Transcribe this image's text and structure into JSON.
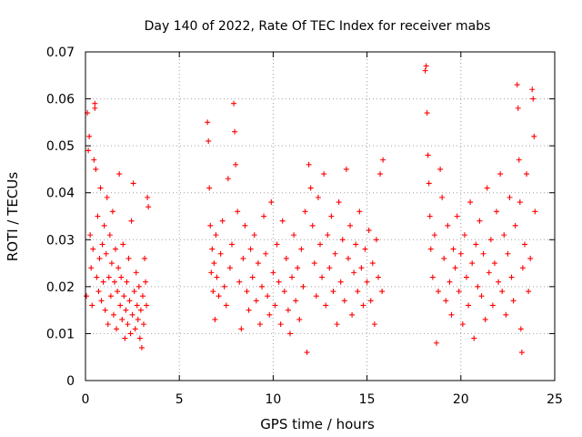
{
  "chart_data": {
    "type": "scatter",
    "title": "Day 140 of 2022, Rate Of TEC Index for receiver mabs",
    "xlabel": "GPS time / hours",
    "ylabel": "ROTI / TECUs",
    "xlim": [
      0,
      25
    ],
    "ylim": [
      0,
      0.07
    ],
    "x_ticks": [
      "0",
      "5",
      "10",
      "15",
      "20",
      "25"
    ],
    "y_ticks": [
      "0",
      "0.01",
      "0.02",
      "0.03",
      "0.04",
      "0.05",
      "0.06",
      "0.07"
    ],
    "grid": true,
    "legend": "none",
    "marker": "+",
    "color": "#ff0000",
    "series": [
      {
        "points": [
          [
            0.05,
            0.018
          ],
          [
            0.1,
            0.057
          ],
          [
            0.15,
            0.049
          ],
          [
            0.2,
            0.052
          ],
          [
            0.25,
            0.031
          ],
          [
            0.3,
            0.024
          ],
          [
            0.35,
            0.016
          ],
          [
            0.4,
            0.028
          ],
          [
            0.45,
            0.047
          ],
          [
            0.5,
            0.059
          ],
          [
            0.5,
            0.058
          ],
          [
            0.55,
            0.045
          ],
          [
            0.6,
            0.022
          ],
          [
            0.65,
            0.035
          ],
          [
            0.7,
            0.019
          ],
          [
            0.75,
            0.026
          ],
          [
            0.8,
            0.041
          ],
          [
            0.85,
            0.017
          ],
          [
            0.9,
            0.029
          ],
          [
            0.95,
            0.021
          ],
          [
            1.0,
            0.033
          ],
          [
            1.05,
            0.015
          ],
          [
            1.1,
            0.027
          ],
          [
            1.15,
            0.039
          ],
          [
            1.2,
            0.012
          ],
          [
            1.25,
            0.022
          ],
          [
            1.3,
            0.031
          ],
          [
            1.35,
            0.018
          ],
          [
            1.4,
            0.025
          ],
          [
            1.45,
            0.036
          ],
          [
            1.5,
            0.014
          ],
          [
            1.55,
            0.021
          ],
          [
            1.6,
            0.028
          ],
          [
            1.65,
            0.011
          ],
          [
            1.7,
            0.019
          ],
          [
            1.75,
            0.024
          ],
          [
            1.8,
            0.044
          ],
          [
            1.85,
            0.016
          ],
          [
            1.9,
            0.022
          ],
          [
            1.95,
            0.013
          ],
          [
            2.0,
            0.029
          ],
          [
            2.05,
            0.018
          ],
          [
            2.1,
            0.009
          ],
          [
            2.15,
            0.015
          ],
          [
            2.2,
            0.021
          ],
          [
            2.25,
            0.012
          ],
          [
            2.3,
            0.026
          ],
          [
            2.35,
            0.017
          ],
          [
            2.4,
            0.01
          ],
          [
            2.45,
            0.034
          ],
          [
            2.5,
            0.014
          ],
          [
            2.55,
            0.042
          ],
          [
            2.6,
            0.019
          ],
          [
            2.65,
            0.011
          ],
          [
            2.7,
            0.023
          ],
          [
            2.75,
            0.016
          ],
          [
            2.8,
            0.013
          ],
          [
            2.85,
            0.02
          ],
          [
            2.9,
            0.009
          ],
          [
            2.95,
            0.015
          ],
          [
            3.0,
            0.007
          ],
          [
            3.05,
            0.018
          ],
          [
            3.1,
            0.012
          ],
          [
            3.15,
            0.026
          ],
          [
            3.2,
            0.021
          ],
          [
            3.25,
            0.016
          ],
          [
            3.3,
            0.039
          ],
          [
            3.35,
            0.037
          ],
          [
            6.5,
            0.055
          ],
          [
            6.55,
            0.051
          ],
          [
            6.6,
            0.041
          ],
          [
            6.65,
            0.033
          ],
          [
            6.7,
            0.023
          ],
          [
            6.75,
            0.028
          ],
          [
            6.8,
            0.019
          ],
          [
            6.85,
            0.025
          ],
          [
            6.9,
            0.013
          ],
          [
            6.95,
            0.031
          ],
          [
            7.0,
            0.022
          ],
          [
            7.1,
            0.018
          ],
          [
            7.2,
            0.027
          ],
          [
            7.3,
            0.034
          ],
          [
            7.4,
            0.02
          ],
          [
            7.5,
            0.016
          ],
          [
            7.6,
            0.043
          ],
          [
            7.7,
            0.024
          ],
          [
            7.8,
            0.029
          ],
          [
            7.9,
            0.059
          ],
          [
            7.95,
            0.053
          ],
          [
            8.0,
            0.046
          ],
          [
            8.1,
            0.036
          ],
          [
            8.2,
            0.021
          ],
          [
            8.3,
            0.011
          ],
          [
            8.4,
            0.026
          ],
          [
            8.5,
            0.033
          ],
          [
            8.6,
            0.019
          ],
          [
            8.7,
            0.015
          ],
          [
            8.8,
            0.028
          ],
          [
            8.9,
            0.022
          ],
          [
            9.0,
            0.031
          ],
          [
            9.1,
            0.017
          ],
          [
            9.2,
            0.025
          ],
          [
            9.3,
            0.012
          ],
          [
            9.4,
            0.02
          ],
          [
            9.5,
            0.035
          ],
          [
            9.6,
            0.027
          ],
          [
            9.7,
            0.018
          ],
          [
            9.8,
            0.014
          ],
          [
            9.9,
            0.038
          ],
          [
            10.0,
            0.023
          ],
          [
            10.1,
            0.016
          ],
          [
            10.2,
            0.029
          ],
          [
            10.3,
            0.021
          ],
          [
            10.4,
            0.012
          ],
          [
            10.5,
            0.034
          ],
          [
            10.6,
            0.019
          ],
          [
            10.7,
            0.026
          ],
          [
            10.8,
            0.015
          ],
          [
            10.9,
            0.01
          ],
          [
            11.0,
            0.022
          ],
          [
            11.1,
            0.031
          ],
          [
            11.2,
            0.017
          ],
          [
            11.3,
            0.024
          ],
          [
            11.4,
            0.013
          ],
          [
            11.5,
            0.028
          ],
          [
            11.6,
            0.02
          ],
          [
            11.7,
            0.036
          ],
          [
            11.8,
            0.006
          ],
          [
            11.9,
            0.046
          ],
          [
            12.0,
            0.041
          ],
          [
            12.1,
            0.033
          ],
          [
            12.2,
            0.025
          ],
          [
            12.3,
            0.018
          ],
          [
            12.4,
            0.039
          ],
          [
            12.5,
            0.029
          ],
          [
            12.6,
            0.022
          ],
          [
            12.7,
            0.044
          ],
          [
            12.8,
            0.016
          ],
          [
            12.9,
            0.031
          ],
          [
            13.0,
            0.024
          ],
          [
            13.1,
            0.035
          ],
          [
            13.2,
            0.019
          ],
          [
            13.3,
            0.027
          ],
          [
            13.4,
            0.012
          ],
          [
            13.5,
            0.038
          ],
          [
            13.6,
            0.021
          ],
          [
            13.7,
            0.03
          ],
          [
            13.8,
            0.017
          ],
          [
            13.9,
            0.045
          ],
          [
            14.0,
            0.026
          ],
          [
            14.1,
            0.033
          ],
          [
            14.2,
            0.014
          ],
          [
            14.3,
            0.023
          ],
          [
            14.4,
            0.029
          ],
          [
            14.5,
            0.019
          ],
          [
            14.6,
            0.036
          ],
          [
            14.7,
            0.024
          ],
          [
            14.8,
            0.016
          ],
          [
            14.9,
            0.028
          ],
          [
            15.0,
            0.021
          ],
          [
            15.1,
            0.032
          ],
          [
            15.2,
            0.017
          ],
          [
            15.3,
            0.025
          ],
          [
            15.4,
            0.012
          ],
          [
            15.5,
            0.03
          ],
          [
            15.6,
            0.022
          ],
          [
            15.7,
            0.044
          ],
          [
            15.8,
            0.019
          ],
          [
            15.85,
            0.047
          ],
          [
            18.1,
            0.066
          ],
          [
            18.15,
            0.067
          ],
          [
            18.2,
            0.057
          ],
          [
            18.25,
            0.048
          ],
          [
            18.3,
            0.042
          ],
          [
            18.35,
            0.035
          ],
          [
            18.4,
            0.028
          ],
          [
            18.5,
            0.022
          ],
          [
            18.6,
            0.031
          ],
          [
            18.7,
            0.008
          ],
          [
            18.8,
            0.019
          ],
          [
            18.9,
            0.045
          ],
          [
            19.0,
            0.039
          ],
          [
            19.1,
            0.026
          ],
          [
            19.2,
            0.017
          ],
          [
            19.3,
            0.033
          ],
          [
            19.4,
            0.021
          ],
          [
            19.5,
            0.014
          ],
          [
            19.6,
            0.028
          ],
          [
            19.7,
            0.024
          ],
          [
            19.8,
            0.035
          ],
          [
            19.9,
            0.019
          ],
          [
            20.0,
            0.027
          ],
          [
            20.1,
            0.012
          ],
          [
            20.2,
            0.031
          ],
          [
            20.3,
            0.022
          ],
          [
            20.4,
            0.016
          ],
          [
            20.5,
            0.038
          ],
          [
            20.6,
            0.025
          ],
          [
            20.7,
            0.009
          ],
          [
            20.8,
            0.029
          ],
          [
            20.9,
            0.02
          ],
          [
            21.0,
            0.034
          ],
          [
            21.1,
            0.018
          ],
          [
            21.2,
            0.027
          ],
          [
            21.3,
            0.013
          ],
          [
            21.4,
            0.041
          ],
          [
            21.5,
            0.023
          ],
          [
            21.6,
            0.03
          ],
          [
            21.7,
            0.016
          ],
          [
            21.8,
            0.025
          ],
          [
            21.9,
            0.036
          ],
          [
            22.0,
            0.021
          ],
          [
            22.1,
            0.044
          ],
          [
            22.2,
            0.019
          ],
          [
            22.3,
            0.031
          ],
          [
            22.4,
            0.014
          ],
          [
            22.5,
            0.027
          ],
          [
            22.6,
            0.039
          ],
          [
            22.7,
            0.022
          ],
          [
            22.8,
            0.017
          ],
          [
            22.9,
            0.033
          ],
          [
            23.0,
            0.063
          ],
          [
            23.05,
            0.058
          ],
          [
            23.1,
            0.047
          ],
          [
            23.15,
            0.038
          ],
          [
            23.2,
            0.011
          ],
          [
            23.25,
            0.006
          ],
          [
            23.3,
            0.024
          ],
          [
            23.4,
            0.029
          ],
          [
            23.5,
            0.044
          ],
          [
            23.6,
            0.019
          ],
          [
            23.7,
            0.026
          ],
          [
            23.8,
            0.062
          ],
          [
            23.85,
            0.06
          ],
          [
            23.9,
            0.052
          ],
          [
            23.95,
            0.036
          ]
        ]
      }
    ]
  }
}
